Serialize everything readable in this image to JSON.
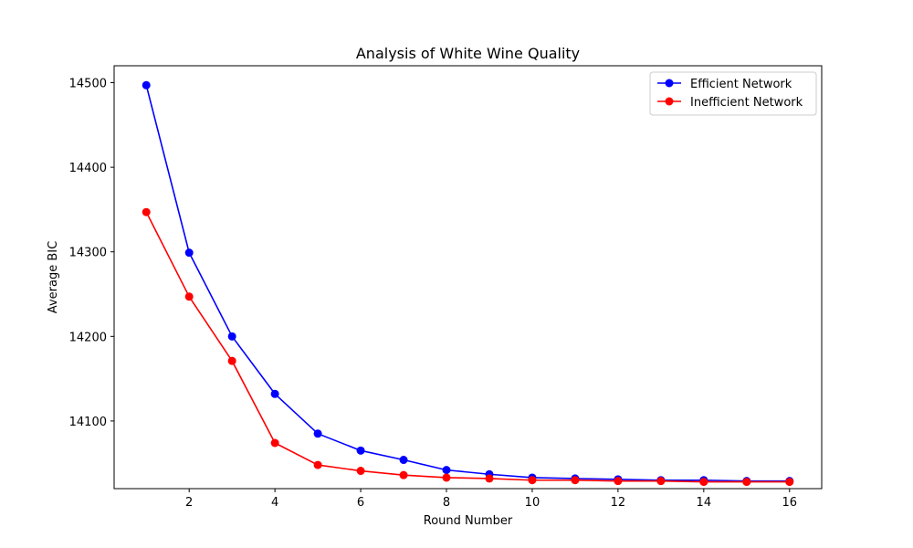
{
  "chart_data": {
    "type": "line",
    "title": "Analysis of White Wine Quality",
    "xlabel": "Round Number",
    "ylabel": "Average BIC",
    "x": [
      1,
      2,
      3,
      4,
      5,
      6,
      7,
      8,
      9,
      10,
      11,
      12,
      13,
      14,
      15,
      16
    ],
    "xlim": [
      0.25,
      16.75
    ],
    "ylim": [
      14020,
      14520
    ],
    "xticks": [
      2,
      4,
      6,
      8,
      10,
      12,
      14,
      16
    ],
    "yticks": [
      14100,
      14200,
      14300,
      14400,
      14500
    ],
    "grid": false,
    "legend_position": "upper right",
    "series": [
      {
        "name": "Efficient Network",
        "color": "#0000ff",
        "marker": "circle",
        "values": [
          14497,
          14299,
          14200,
          14132,
          14085,
          14065,
          14054,
          14042,
          14037,
          14033,
          14032,
          14031,
          14030,
          14030,
          14029,
          14029
        ]
      },
      {
        "name": "Inefficient Network",
        "color": "#ff0000",
        "marker": "circle",
        "values": [
          14347,
          14247,
          14171,
          14074,
          14048,
          14041,
          14036,
          14033,
          14032,
          14030,
          14030,
          14029,
          14029,
          14028,
          14028,
          14028
        ]
      }
    ]
  }
}
